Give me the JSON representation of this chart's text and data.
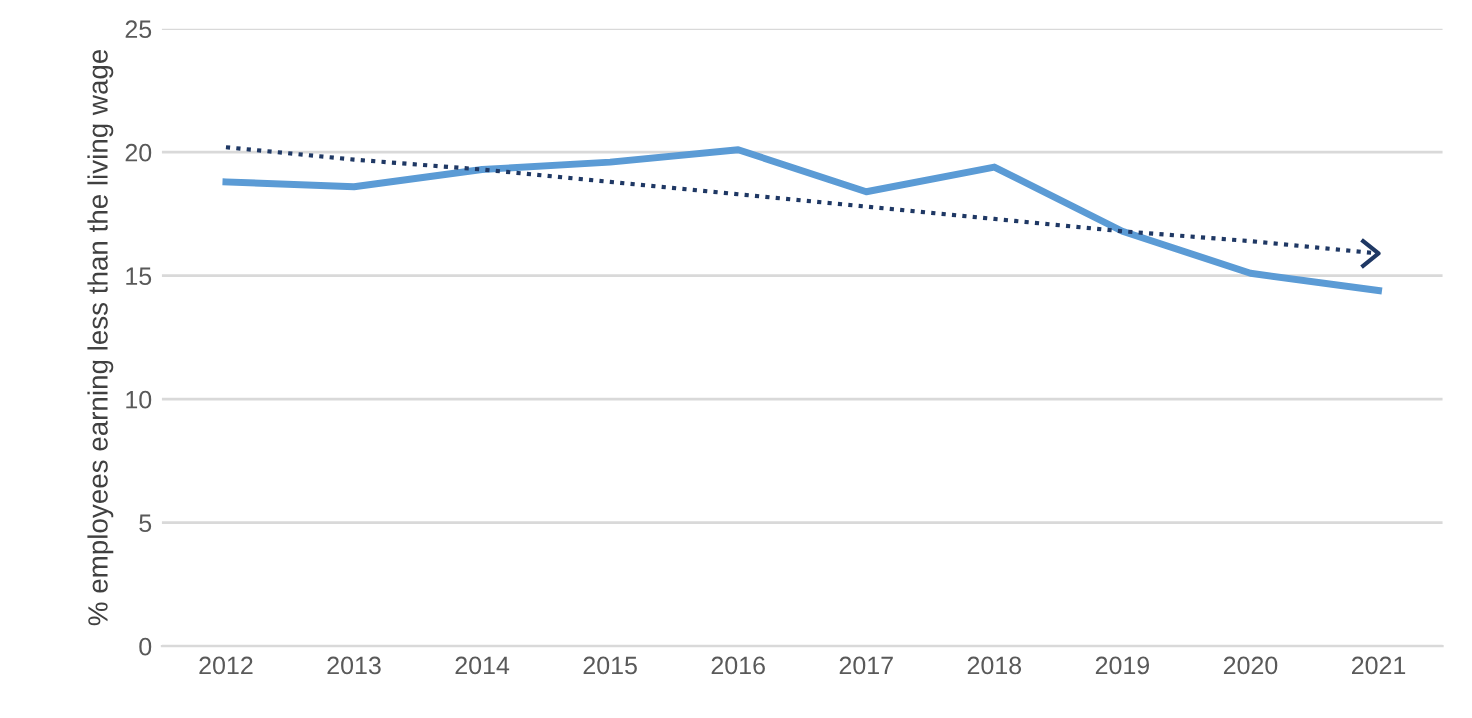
{
  "chart_data": {
    "type": "line",
    "ylabel": "% employees earning less than the living wage",
    "categories": [
      "2012",
      "2013",
      "2014",
      "2015",
      "2016",
      "2017",
      "2018",
      "2019",
      "2020",
      "2021"
    ],
    "series": [
      {
        "color": "#5b9bd5",
        "values": [
          18.8,
          18.6,
          19.3,
          19.6,
          20.1,
          18.4,
          19.4,
          16.8,
          15.1,
          14.4
        ]
      },
      {
        "type": "line",
        "color": "#1f3864",
        "line_style": "dotted",
        "values": [
          20.2,
          19.7,
          19.3,
          18.8,
          18.3,
          17.8,
          17.3,
          16.8,
          16.4,
          15.9
        ]
      }
    ],
    "ylim": [
      0,
      25
    ],
    "yticks": [
      0,
      5,
      10,
      15,
      20,
      25
    ],
    "grid": "y",
    "marker": "none"
  }
}
